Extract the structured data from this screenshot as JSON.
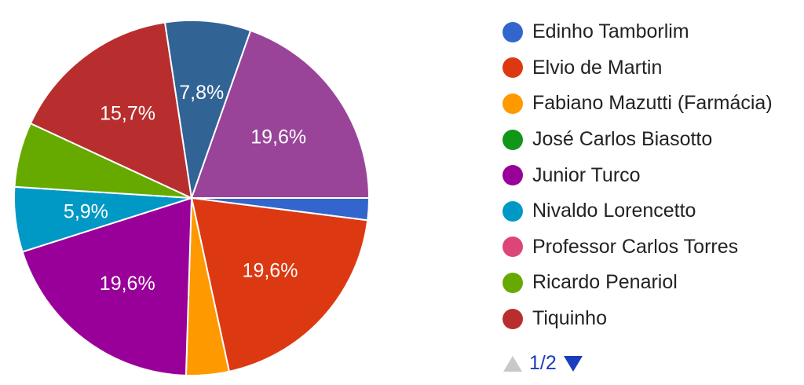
{
  "chart_data": {
    "type": "pie",
    "title": "",
    "legend_position": "right",
    "slices": [
      {
        "label": "Edinho Tamborlim",
        "value": 2.0,
        "color": "#3366cc",
        "display_label": ""
      },
      {
        "label": "Elvio de Martin",
        "value": 19.6,
        "color": "#dc3912",
        "display_label": "19,6%"
      },
      {
        "label": "Fabiano Mazutti (Farmácia)",
        "value": 3.9,
        "color": "#ff9900",
        "display_label": ""
      },
      {
        "label": "José Carlos Biasotto",
        "value": 0,
        "color": "#109618",
        "display_label": ""
      },
      {
        "label": "Junior Turco",
        "value": 19.6,
        "color": "#990099",
        "display_label": "19,6%"
      },
      {
        "label": "Nivaldo Lorencetto",
        "value": 5.9,
        "color": "#0099c6",
        "display_label": "5,9%"
      },
      {
        "label": "Professor Carlos Torres",
        "value": 0,
        "color": "#dd4477",
        "display_label": ""
      },
      {
        "label": "Ricardo Penariol",
        "value": 5.9,
        "color": "#66aa00",
        "display_label": ""
      },
      {
        "label": "Tiquinho",
        "value": 15.7,
        "color": "#b82e2e",
        "display_label": "15,7%"
      },
      {
        "label": "",
        "value": 7.8,
        "color": "#316395",
        "display_label": "7,8%"
      },
      {
        "label": "",
        "value": 19.6,
        "color": "#994499",
        "display_label": "19,6%"
      }
    ],
    "legend": {
      "items": [
        {
          "label": "Edinho Tamborlim",
          "color": "#3366cc"
        },
        {
          "label": "Elvio de Martin",
          "color": "#dc3912"
        },
        {
          "label": "Fabiano Mazutti (Farmácia)",
          "color": "#ff9900"
        },
        {
          "label": "José Carlos Biasotto",
          "color": "#109618"
        },
        {
          "label": "Junior Turco",
          "color": "#990099"
        },
        {
          "label": "Nivaldo Lorencetto",
          "color": "#0099c6"
        },
        {
          "label": "Professor Carlos Torres",
          "color": "#dd4477"
        },
        {
          "label": "Ricardo Penariol",
          "color": "#66aa00"
        },
        {
          "label": "Tiquinho",
          "color": "#b82e2e"
        }
      ],
      "pager": {
        "label": "1/2",
        "prev_color": "#c8c8c8",
        "next_color": "#1a3dbd"
      }
    }
  }
}
